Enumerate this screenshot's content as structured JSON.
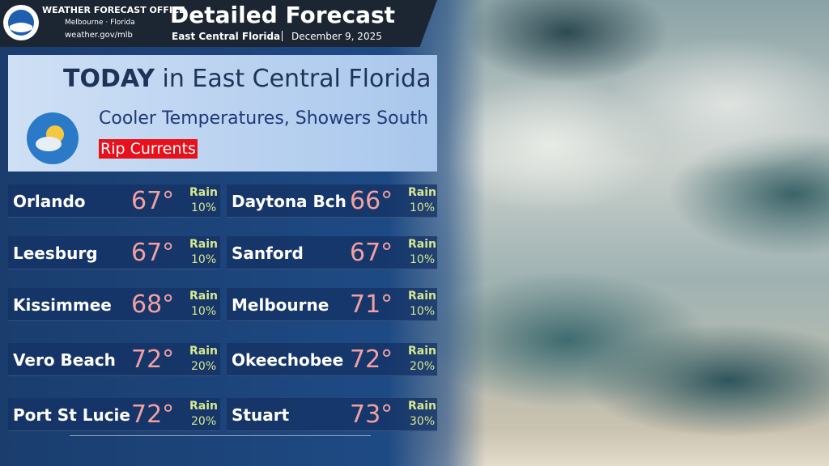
{
  "header": {
    "office": "WEATHER FORECAST OFFICE",
    "city": "Melbourne",
    "state": "Florida",
    "url": "weather.gov/mlb",
    "title": "Detailed Forecast",
    "region": "East Central Florida",
    "date": "December 9, 2025"
  },
  "panel": {
    "today": "TODAY",
    "region": "in East Central Florida",
    "headline": "Cooler Temperatures, Showers South",
    "hazard": "Rip Currents"
  },
  "cities": [
    {
      "name": "Orlando",
      "temp": "67°",
      "rain_label": "Rain",
      "rain": "10%"
    },
    {
      "name": "Daytona Bch",
      "temp": "66°",
      "rain_label": "Rain",
      "rain": "10%"
    },
    {
      "name": "Leesburg",
      "temp": "67°",
      "rain_label": "Rain",
      "rain": "10%"
    },
    {
      "name": "Sanford",
      "temp": "67°",
      "rain_label": "Rain",
      "rain": "10%"
    },
    {
      "name": "Kissimmee",
      "temp": "68°",
      "rain_label": "Rain",
      "rain": "10%"
    },
    {
      "name": "Melbourne",
      "temp": "71°",
      "rain_label": "Rain",
      "rain": "10%"
    },
    {
      "name": "Vero Beach",
      "temp": "72°",
      "rain_label": "Rain",
      "rain": "20%"
    },
    {
      "name": "Okeechobee",
      "temp": "72°",
      "rain_label": "Rain",
      "rain": "20%"
    },
    {
      "name": "Port St Lucie",
      "temp": "72°",
      "rain_label": "Rain",
      "rain": "20%"
    },
    {
      "name": "Stuart",
      "temp": "73°",
      "rain_label": "Rain",
      "rain": "30%"
    }
  ]
}
